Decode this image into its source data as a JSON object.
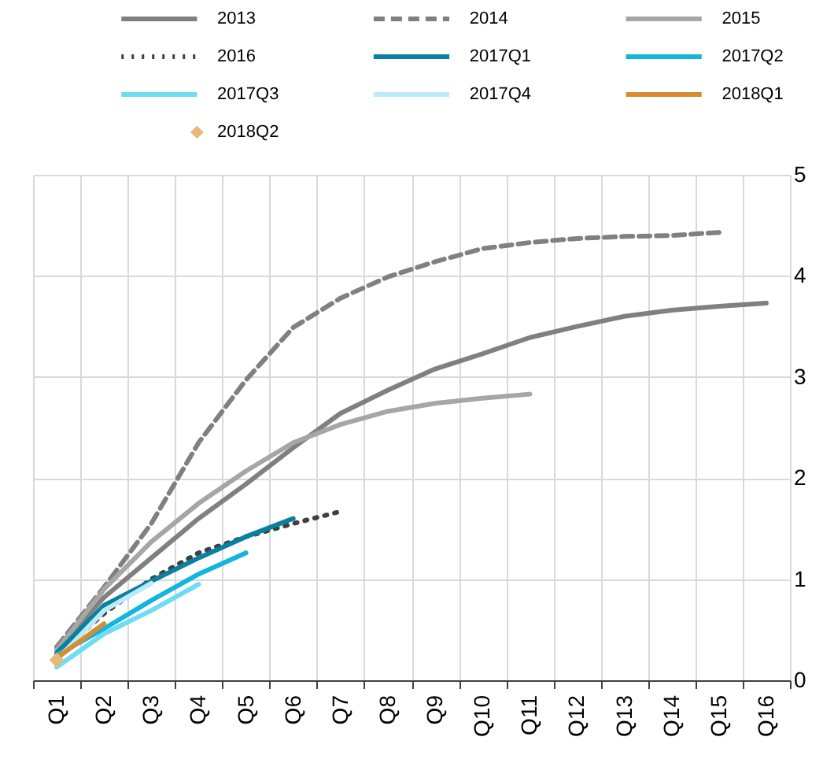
{
  "chart_data": {
    "type": "line",
    "categories": [
      "Q1",
      "Q2",
      "Q3",
      "Q4",
      "Q5",
      "Q6",
      "Q7",
      "Q8",
      "Q9",
      "Q10",
      "Q11",
      "Q12",
      "Q13",
      "Q14",
      "Q15",
      "Q16"
    ],
    "ylim": [
      0,
      5
    ],
    "yticks": [
      0,
      1,
      2,
      3,
      4,
      5
    ],
    "grid": true,
    "legend": "top",
    "series": [
      {
        "name": "2013",
        "color": "#808080",
        "line_style": "solid",
        "values": [
          0.3,
          0.82,
          1.21,
          1.6,
          1.94,
          2.3,
          2.64,
          2.87,
          3.08,
          3.23,
          3.39,
          3.5,
          3.6,
          3.66,
          3.7,
          3.73
        ]
      },
      {
        "name": "2014",
        "color": "#808080",
        "line_style": "dashed",
        "values": [
          0.33,
          0.92,
          1.55,
          2.35,
          2.97,
          3.49,
          3.78,
          3.99,
          4.14,
          4.27,
          4.33,
          4.37,
          4.39,
          4.4,
          4.43,
          null
        ]
      },
      {
        "name": "2015",
        "color": "#a6a6a6",
        "line_style": "solid",
        "values": [
          0.3,
          0.9,
          1.37,
          1.75,
          2.07,
          2.35,
          2.53,
          2.66,
          2.74,
          2.79,
          2.83,
          null,
          null,
          null,
          null,
          null
        ]
      },
      {
        "name": "2016",
        "color": "#404040",
        "line_style": "dotted",
        "values": [
          0.25,
          0.66,
          1.0,
          1.26,
          1.42,
          1.55,
          1.67,
          null,
          null,
          null,
          null,
          null,
          null,
          null,
          null,
          null
        ]
      },
      {
        "name": "2017Q1",
        "color": "#0a7fa0",
        "line_style": "solid",
        "values": [
          0.27,
          0.74,
          0.98,
          1.21,
          1.42,
          1.6,
          null,
          null,
          null,
          null,
          null,
          null,
          null,
          null,
          null,
          null
        ]
      },
      {
        "name": "2017Q2",
        "color": "#12b5dc",
        "line_style": "solid",
        "values": [
          0.25,
          0.51,
          0.79,
          1.05,
          1.26,
          null,
          null,
          null,
          null,
          null,
          null,
          null,
          null,
          null,
          null,
          null
        ]
      },
      {
        "name": "2017Q3",
        "color": "#6edcf5",
        "line_style": "solid",
        "values": [
          0.13,
          0.46,
          0.69,
          0.95,
          null,
          null,
          null,
          null,
          null,
          null,
          null,
          null,
          null,
          null,
          null,
          null
        ]
      },
      {
        "name": "2017Q4",
        "color": "#b8ecf8",
        "line_style": "solid",
        "values": [
          0.2,
          0.69,
          0.96,
          null,
          null,
          null,
          null,
          null,
          null,
          null,
          null,
          null,
          null,
          null,
          null,
          null
        ]
      },
      {
        "name": "2018Q1",
        "color": "#d98c2e",
        "line_style": "solid",
        "values": [
          0.22,
          0.56,
          null,
          null,
          null,
          null,
          null,
          null,
          null,
          null,
          null,
          null,
          null,
          null,
          null,
          null
        ]
      },
      {
        "name": "2018Q2",
        "color": "#e8b87a",
        "type": "scatter",
        "marker": "diamond",
        "values": [
          0.2,
          null,
          null,
          null,
          null,
          null,
          null,
          null,
          null,
          null,
          null,
          null,
          null,
          null,
          null,
          null
        ]
      }
    ]
  }
}
